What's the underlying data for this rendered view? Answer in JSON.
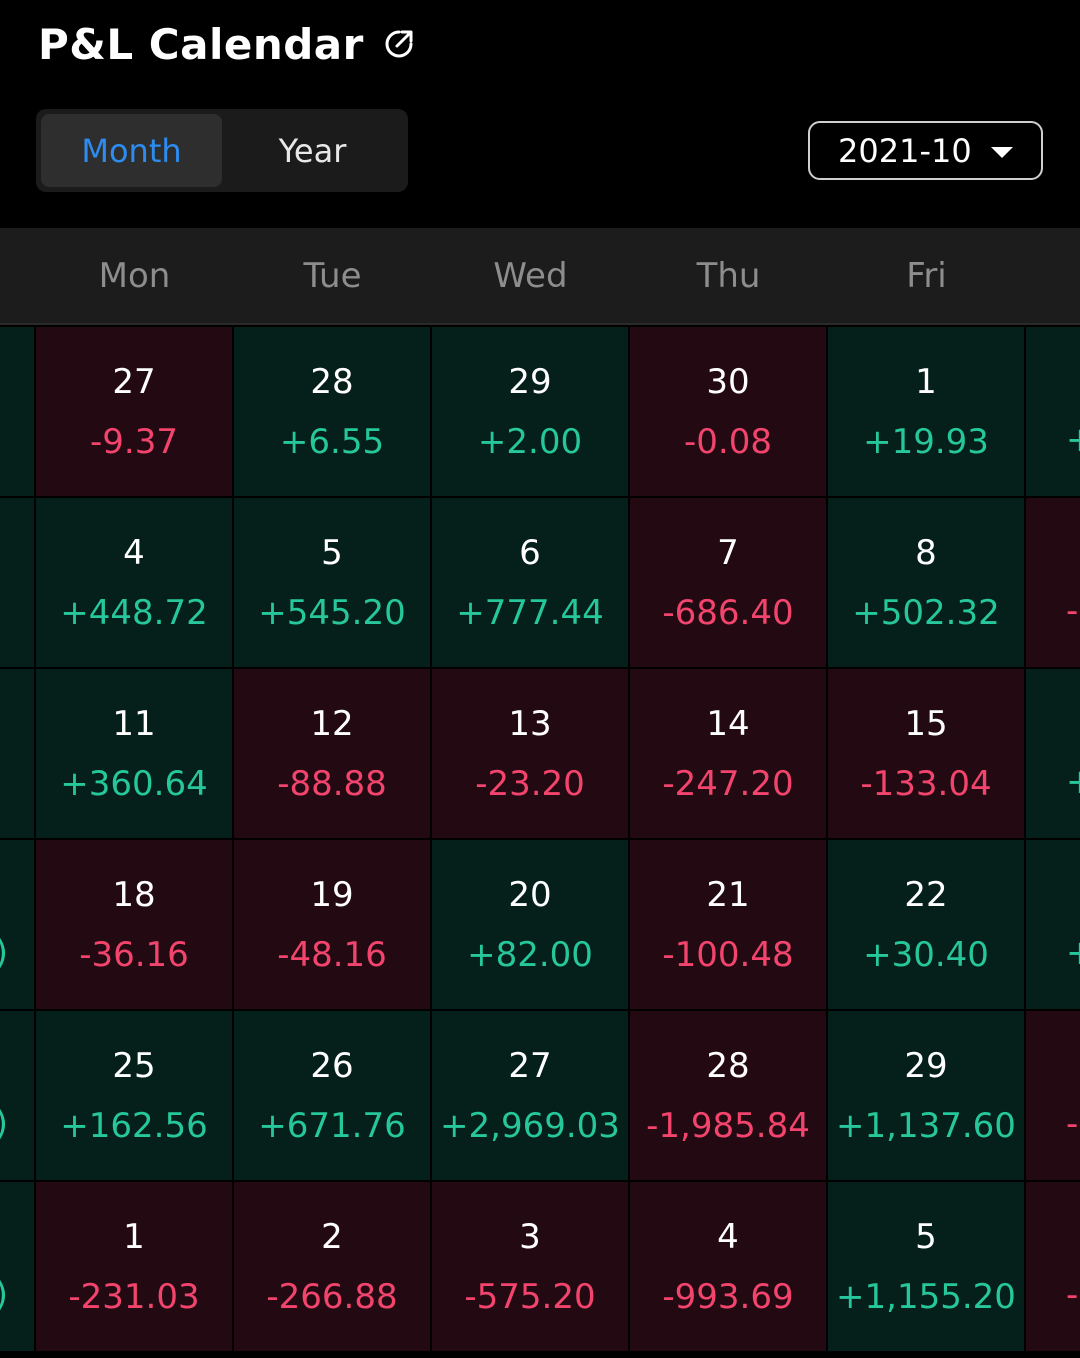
{
  "header": {
    "title": "P&L Calendar",
    "share_icon": "share-arrow-icon"
  },
  "view_toggle": {
    "month_label": "Month",
    "year_label": "Year",
    "selected": "Month"
  },
  "date_picker": {
    "value": "2021-10",
    "icon": "caret-down-icon"
  },
  "colors": {
    "positive_text": "#26c79a",
    "negative_text": "#f2446c",
    "positive_bg": "#051f1b",
    "negative_bg": "#230a12",
    "active_tab": "#2d8cf0"
  },
  "weekdays": [
    "Mon",
    "Tue",
    "Wed",
    "Thu",
    "Fri"
  ],
  "weeks": [
    [
      {
        "day": "27",
        "value": "-9.37",
        "sign": "neg"
      },
      {
        "day": "28",
        "value": "+6.55",
        "sign": "pos"
      },
      {
        "day": "29",
        "value": "+2.00",
        "sign": "pos"
      },
      {
        "day": "30",
        "value": "-0.08",
        "sign": "neg"
      },
      {
        "day": "1",
        "value": "+19.93",
        "sign": "pos"
      }
    ],
    [
      {
        "day": "4",
        "value": "+448.72",
        "sign": "pos"
      },
      {
        "day": "5",
        "value": "+545.20",
        "sign": "pos"
      },
      {
        "day": "6",
        "value": "+777.44",
        "sign": "pos"
      },
      {
        "day": "7",
        "value": "-686.40",
        "sign": "neg"
      },
      {
        "day": "8",
        "value": "+502.32",
        "sign": "pos"
      }
    ],
    [
      {
        "day": "11",
        "value": "+360.64",
        "sign": "pos"
      },
      {
        "day": "12",
        "value": "-88.88",
        "sign": "neg"
      },
      {
        "day": "13",
        "value": "-23.20",
        "sign": "neg"
      },
      {
        "day": "14",
        "value": "-247.20",
        "sign": "neg"
      },
      {
        "day": "15",
        "value": "-133.04",
        "sign": "neg"
      }
    ],
    [
      {
        "day": "18",
        "value": "-36.16",
        "sign": "neg"
      },
      {
        "day": "19",
        "value": "-48.16",
        "sign": "neg"
      },
      {
        "day": "20",
        "value": "+82.00",
        "sign": "pos"
      },
      {
        "day": "21",
        "value": "-100.48",
        "sign": "neg"
      },
      {
        "day": "22",
        "value": "+30.40",
        "sign": "pos"
      }
    ],
    [
      {
        "day": "25",
        "value": "+162.56",
        "sign": "pos"
      },
      {
        "day": "26",
        "value": "+671.76",
        "sign": "pos"
      },
      {
        "day": "27",
        "value": "+2,969.03",
        "sign": "pos"
      },
      {
        "day": "28",
        "value": "-1,985.84",
        "sign": "neg"
      },
      {
        "day": "29",
        "value": "+1,137.60",
        "sign": "pos"
      }
    ],
    [
      {
        "day": "1",
        "value": "-231.03",
        "sign": "neg"
      },
      {
        "day": "2",
        "value": "-266.88",
        "sign": "neg"
      },
      {
        "day": "3",
        "value": "-575.20",
        "sign": "neg"
      },
      {
        "day": "4",
        "value": "-993.69",
        "sign": "neg"
      },
      {
        "day": "5",
        "value": "+1,155.20",
        "sign": "pos"
      }
    ]
  ],
  "edge_right": [
    {
      "fragment": "+",
      "sign": "pos"
    },
    {
      "fragment": "-",
      "sign": "neg"
    },
    {
      "fragment": "+",
      "sign": "pos"
    },
    {
      "fragment": "+",
      "sign": "pos"
    },
    {
      "fragment": "-",
      "sign": "neg"
    },
    {
      "fragment": "-",
      "sign": "neg"
    }
  ],
  "edge_left": [
    {
      "fragment": "",
      "sign": "pos"
    },
    {
      "fragment": "",
      "sign": "pos"
    },
    {
      "fragment": "",
      "sign": "pos"
    },
    {
      "fragment": ")",
      "sign": "pos"
    },
    {
      "fragment": ")",
      "sign": "pos"
    },
    {
      "fragment": ")",
      "sign": "pos"
    }
  ]
}
